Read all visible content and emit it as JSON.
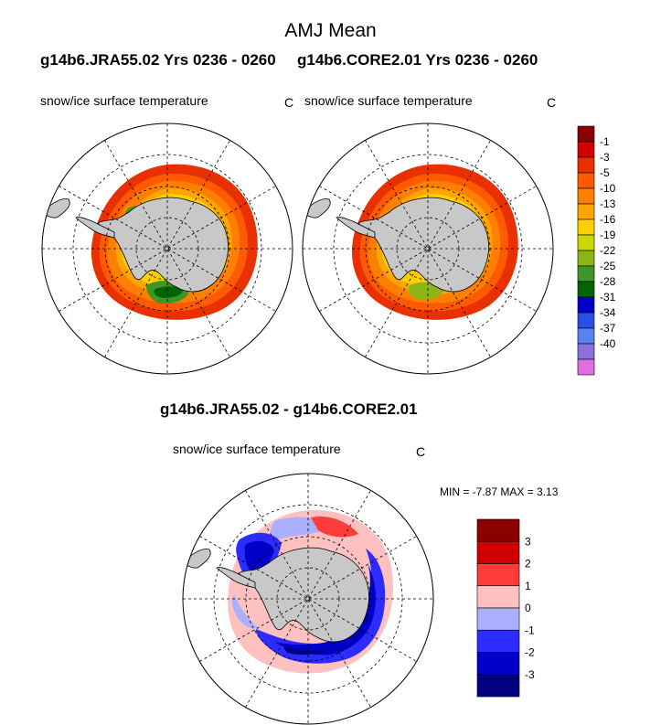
{
  "title": "AMJ Mean",
  "top_left_case": "g14b6.JRA55.02  Yrs 0236 - 0260",
  "top_right_case": "g14b6.CORE2.01  Yrs 0236 - 0260",
  "left_variable": "snow/ice surface temperature",
  "left_units": "C",
  "right_variable": "snow/ice surface temperature",
  "right_units": "C",
  "diff_title": "g14b6.JRA55.02 - g14b6.CORE2.01",
  "diff_variable": "snow/ice surface temperature",
  "diff_units": "C",
  "stats_text": "MIN =  -7.87 MAX =   3.13",
  "colorbar_mean": {
    "labels": [
      "-1",
      "-3",
      "-5",
      "-10",
      "-13",
      "-16",
      "-19",
      "-22",
      "-25",
      "-28",
      "-31",
      "-34",
      "-37",
      "-40"
    ],
    "colors": [
      "#8b0000",
      "#d40000",
      "#e83000",
      "#ff5a00",
      "#ff7f00",
      "#ffa500",
      "#ffd000",
      "#c8d800",
      "#8cb414",
      "#3c9628",
      "#006400",
      "#0000c8",
      "#2850e6",
      "#5a82f0",
      "#8c6fdc",
      "#e06ee0"
    ]
  },
  "colorbar_diff": {
    "labels": [
      "3",
      "2",
      "1",
      "0",
      "-1",
      "-2",
      "-3"
    ],
    "colors": [
      "#8b0000",
      "#d00000",
      "#ff3c3c",
      "#ffc0c0",
      "#aab0ff",
      "#2c2cff",
      "#0000c8",
      "#000080"
    ]
  }
}
